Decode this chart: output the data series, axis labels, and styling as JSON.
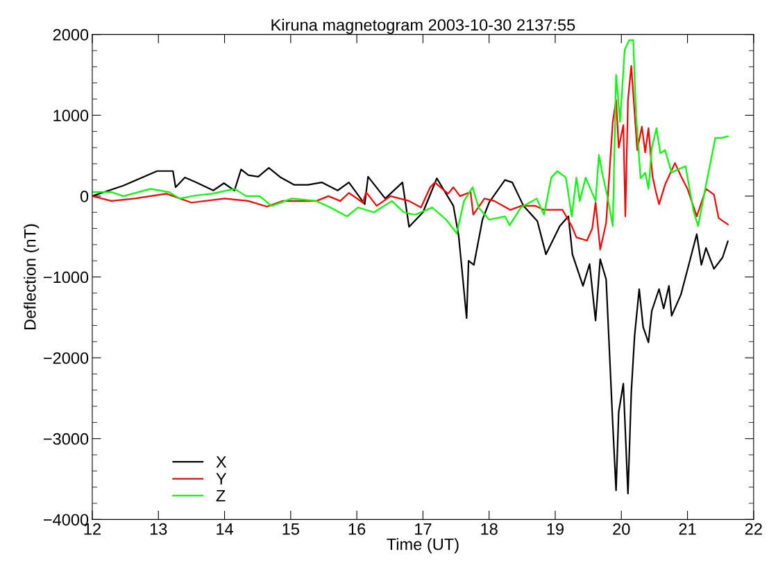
{
  "chart_data": {
    "type": "line",
    "title": "Kiruna magnetogram 2003-10-30 2137:55",
    "xlabel": "Time (UT)",
    "ylabel": "Deflection (nT)",
    "xlim": [
      12,
      22
    ],
    "xticks": [
      12,
      13,
      14,
      15,
      16,
      17,
      18,
      19,
      20,
      21,
      22
    ],
    "ylim": [
      -4000,
      2000
    ],
    "yticks": [
      -4000,
      -3000,
      -2000,
      -1000,
      0,
      1000,
      2000
    ],
    "grid": false,
    "legend": "bottom left",
    "marker": "none",
    "line_style": "solid",
    "series": [
      {
        "name": "X",
        "color": "#000000",
        "x": [
          12.0,
          12.47,
          12.98,
          13.22,
          13.26,
          13.4,
          13.57,
          13.83,
          13.99,
          14.15,
          14.25,
          14.36,
          14.51,
          14.67,
          14.85,
          15.05,
          15.26,
          15.47,
          15.71,
          15.88,
          16.12,
          16.17,
          16.43,
          16.69,
          16.79,
          17.0,
          17.21,
          17.46,
          17.54,
          17.59,
          17.66,
          17.69,
          17.77,
          17.9,
          18.0,
          18.24,
          18.35,
          18.52,
          18.73,
          18.86,
          19.07,
          19.2,
          19.26,
          19.42,
          19.52,
          19.61,
          19.68,
          19.77,
          19.82,
          19.87,
          19.92,
          19.96,
          20.03,
          20.1,
          20.15,
          20.2,
          20.27,
          20.33,
          20.41,
          20.46,
          20.57,
          20.64,
          20.72,
          20.76,
          20.9,
          21.0,
          21.14,
          21.21,
          21.28,
          21.4,
          21.53,
          21.61
        ],
        "values": [
          0,
          130,
          310,
          310,
          110,
          230,
          170,
          70,
          160,
          70,
          330,
          260,
          240,
          350,
          230,
          140,
          140,
          170,
          70,
          170,
          -100,
          240,
          -30,
          170,
          -380,
          -200,
          220,
          -120,
          -490,
          -910,
          -1510,
          -800,
          -850,
          -290,
          -80,
          200,
          170,
          -120,
          -310,
          -720,
          -370,
          -250,
          -720,
          -1110,
          -840,
          -1540,
          -780,
          -1030,
          -1920,
          -2820,
          -3640,
          -2670,
          -2320,
          -3680,
          -2430,
          -1730,
          -1150,
          -1620,
          -1810,
          -1420,
          -1150,
          -1390,
          -1110,
          -1480,
          -1220,
          -910,
          -470,
          -850,
          -640,
          -900,
          -760,
          -560
        ]
      },
      {
        "name": "Y",
        "color": "#ff0000",
        "x": [
          12.0,
          12.29,
          12.64,
          13.12,
          13.5,
          14.0,
          14.36,
          14.64,
          14.88,
          15.39,
          15.57,
          15.75,
          15.88,
          16.09,
          16.14,
          16.3,
          16.51,
          16.79,
          16.97,
          17.11,
          17.18,
          17.38,
          17.46,
          17.56,
          17.72,
          17.76,
          17.93,
          18.08,
          18.32,
          18.49,
          18.7,
          18.83,
          19.11,
          19.25,
          19.32,
          19.48,
          19.56,
          19.61,
          19.68,
          19.77,
          19.87,
          19.92,
          19.96,
          20.03,
          20.06,
          20.1,
          20.15,
          20.2,
          20.24,
          20.31,
          20.36,
          20.41,
          20.47,
          20.52,
          20.57,
          20.66,
          20.81,
          20.9,
          21.0,
          21.14,
          21.28,
          21.4,
          21.47,
          21.61
        ],
        "values": [
          0,
          -60,
          -30,
          30,
          -80,
          -30,
          -60,
          -130,
          -60,
          -60,
          0,
          -60,
          40,
          -80,
          50,
          -120,
          0,
          -60,
          -140,
          110,
          170,
          30,
          110,
          0,
          50,
          -230,
          -30,
          -60,
          -170,
          -120,
          -120,
          -170,
          -170,
          -370,
          -510,
          -550,
          -400,
          -80,
          -660,
          -330,
          920,
          1190,
          600,
          880,
          -250,
          1190,
          1610,
          1030,
          570,
          860,
          540,
          840,
          250,
          60,
          -100,
          140,
          410,
          250,
          90,
          -250,
          90,
          20,
          -270,
          -350
        ]
      },
      {
        "name": "Z",
        "color": "#00ff00",
        "x": [
          12.0,
          12.29,
          12.47,
          12.88,
          13.16,
          13.32,
          13.57,
          13.81,
          14.15,
          14.33,
          14.53,
          14.71,
          15.02,
          15.39,
          15.6,
          15.85,
          16.02,
          16.26,
          16.53,
          16.71,
          16.88,
          17.14,
          17.35,
          17.51,
          17.62,
          17.75,
          17.84,
          18.0,
          18.24,
          18.31,
          18.48,
          18.72,
          18.83,
          18.94,
          19.03,
          19.16,
          19.25,
          19.32,
          19.37,
          19.46,
          19.61,
          19.66,
          19.72,
          19.79,
          19.87,
          19.92,
          19.98,
          20.05,
          20.12,
          20.18,
          20.22,
          20.29,
          20.36,
          20.41,
          20.46,
          20.53,
          20.59,
          20.66,
          20.76,
          20.85,
          20.97,
          21.09,
          21.16,
          21.28,
          21.42,
          21.51,
          21.61
        ],
        "values": [
          50,
          50,
          0,
          90,
          50,
          -30,
          10,
          30,
          90,
          0,
          0,
          -120,
          -30,
          -60,
          -140,
          -250,
          -140,
          -200,
          -60,
          -200,
          -230,
          -140,
          -290,
          -460,
          -60,
          110,
          -140,
          -290,
          -250,
          -360,
          -140,
          -30,
          -230,
          230,
          310,
          230,
          -250,
          230,
          -60,
          230,
          -60,
          510,
          250,
          -10,
          -370,
          1500,
          920,
          1810,
          1930,
          1930,
          1030,
          220,
          290,
          90,
          600,
          840,
          530,
          570,
          290,
          330,
          370,
          -180,
          -370,
          140,
          720,
          720,
          740
        ]
      }
    ]
  }
}
